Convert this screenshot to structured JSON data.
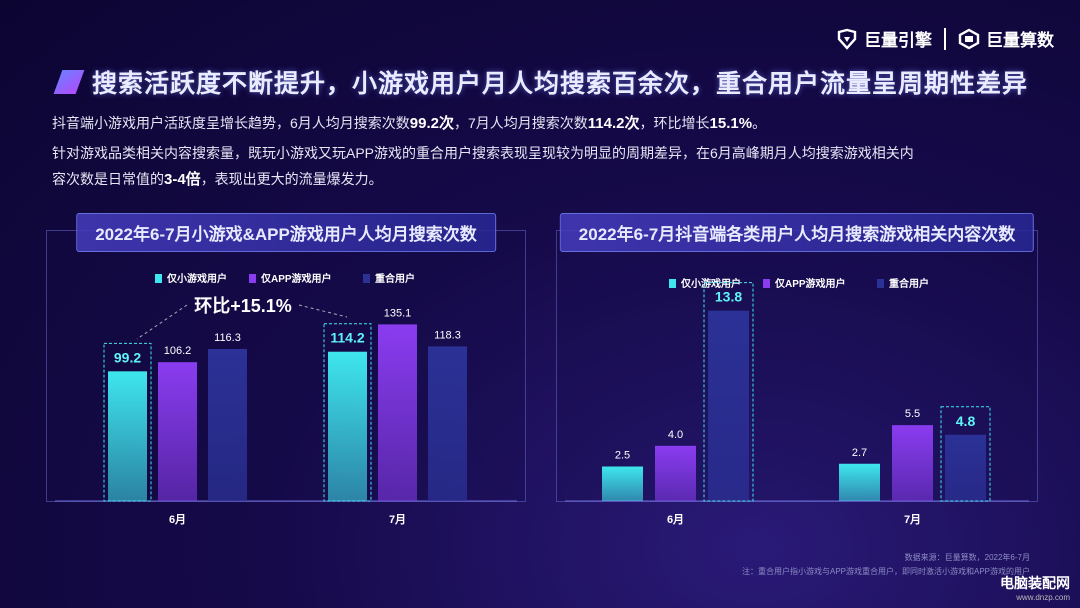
{
  "logos": {
    "left": "巨量引擎",
    "right": "巨量算数"
  },
  "title": "搜索活跃度不断提升，小游戏用户月人均搜索百余次，重合用户流量呈周期性差异",
  "description": {
    "line1": {
      "t1": "抖音端小游戏用户活跃度呈增长趋势，6月人均月搜索次数",
      "h1": "99.2次",
      "t2": "，7月人均月搜索次数",
      "h2": "114.2次",
      "t3": "，环比增长",
      "h3": "15.1%",
      "t4": "。"
    },
    "line2": "针对游戏品类相关内容搜索量，既玩小游戏又玩APP游戏的重合用户搜索表现呈现较为明显的周期差异，在6月高峰期月人均搜索游戏相关内",
    "line3": {
      "t1": "容次数是日常值的",
      "h1": "3-4倍",
      "t2": "，表现出更大的流量爆发力。"
    }
  },
  "colors": {
    "mini": "#3ee6ee",
    "app": "#8a3cf0",
    "overlap": "#2b3196"
  },
  "chart_data": [
    {
      "type": "bar",
      "title": "2022年6-7月小游戏&APP游戏用户人均月搜索次数",
      "categories": [
        "6月",
        "7月"
      ],
      "series": [
        {
          "name": "仅小游戏用户",
          "values": [
            99.2,
            114.2
          ]
        },
        {
          "name": "仅APP游戏用户",
          "values": [
            106.2,
            135.1
          ]
        },
        {
          "name": "重合用户",
          "values": [
            116.3,
            118.3
          ]
        }
      ],
      "annotation": "环比+15.1%",
      "ylim": [
        0,
        140
      ],
      "legend": "top",
      "grid": false
    },
    {
      "type": "bar",
      "title": "2022年6-7月抖音端各类用户人均月搜索游戏相关内容次数",
      "categories": [
        "6月",
        "7月"
      ],
      "series": [
        {
          "name": "仅小游戏用户",
          "values": [
            2.5,
            2.7
          ]
        },
        {
          "name": "仅APP游戏用户",
          "values": [
            4.0,
            5.5
          ]
        },
        {
          "name": "重合用户",
          "values": [
            13.8,
            4.8
          ]
        }
      ],
      "ylim": [
        0,
        14.5
      ],
      "legend": "top",
      "grid": false
    }
  ],
  "footer": {
    "source": "数据来源：巨量算数，2022年6-7月",
    "note": "注：重合用户指小游戏与APP游戏重合用户，即同时激活小游戏和APP游戏的用户"
  },
  "watermark": {
    "line1": "电脑装配网",
    "line2": "www.dnzp.com"
  }
}
